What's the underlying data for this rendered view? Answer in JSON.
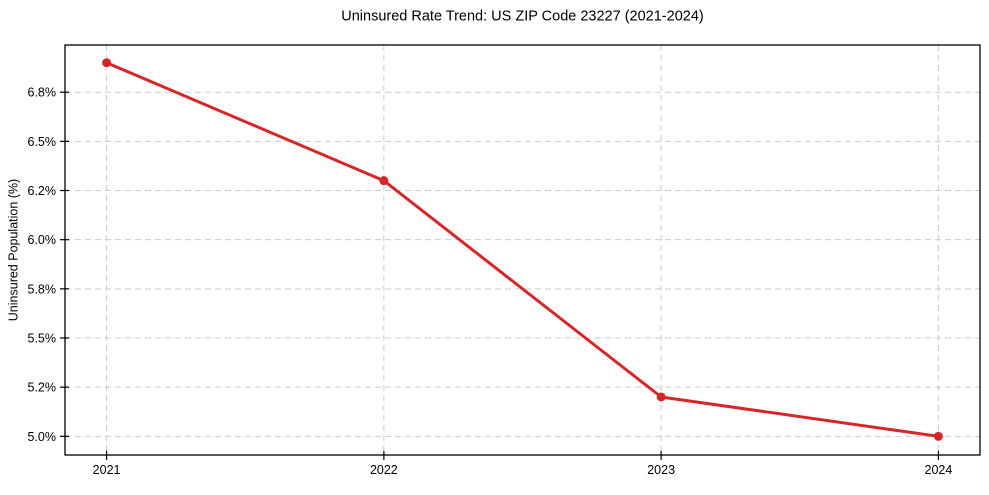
{
  "chart_data": {
    "type": "line",
    "title": "Uninsured Rate Trend: US ZIP Code 23227 (2021-2024)",
    "xlabel": "",
    "ylabel": "Uninsured Population (%)",
    "x": [
      2021,
      2022,
      2023,
      2024
    ],
    "x_tick_labels": [
      "2021",
      "2022",
      "2023",
      "2024"
    ],
    "series": [
      {
        "name": "Uninsured Population (%)",
        "values": [
          6.9,
          6.3,
          5.2,
          5.0
        ],
        "marker": "circle"
      }
    ],
    "y_ticks": [
      {
        "value": 5.0,
        "label": "5.0%"
      },
      {
        "value": 5.25,
        "label": "5.2%"
      },
      {
        "value": 5.5,
        "label": "5.5%"
      },
      {
        "value": 5.75,
        "label": "5.8%"
      },
      {
        "value": 6.0,
        "label": "6.0%"
      },
      {
        "value": 6.25,
        "label": "6.2%"
      },
      {
        "value": 6.5,
        "label": "6.5%"
      },
      {
        "value": 6.75,
        "label": "6.8%"
      }
    ],
    "xlim": [
      2020.85,
      2024.15
    ],
    "ylim": [
      4.905,
      6.99
    ],
    "grid": {
      "visible": true,
      "style": "dashed"
    },
    "legend_position": "none",
    "colors": {
      "line": "#d62728",
      "grid": "#cccccc",
      "axis": "#000000",
      "text": "#000000",
      "background": "#ffffff"
    }
  }
}
